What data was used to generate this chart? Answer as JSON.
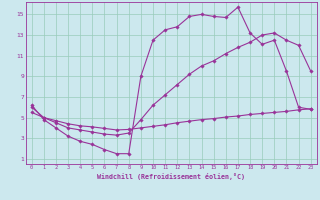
{
  "bg_color": "#cce8ee",
  "line_color": "#993399",
  "grid_color": "#99ccbb",
  "xlabel": "Windchill (Refroidissement éolien,°C)",
  "xlim": [
    -0.5,
    23.5
  ],
  "ylim": [
    0.5,
    16.2
  ],
  "xticks": [
    0,
    1,
    2,
    3,
    4,
    5,
    6,
    7,
    8,
    9,
    10,
    11,
    12,
    13,
    14,
    15,
    16,
    17,
    18,
    19,
    20,
    21,
    22,
    23
  ],
  "yticks": [
    1,
    3,
    5,
    7,
    9,
    11,
    13,
    15
  ],
  "line1_x": [
    0,
    1,
    2,
    3,
    4,
    5,
    6,
    7,
    8,
    9,
    10,
    11,
    12,
    13,
    14,
    15,
    16,
    17,
    18,
    19,
    20,
    21,
    22,
    23
  ],
  "line1_y": [
    6.2,
    4.8,
    4.0,
    3.2,
    2.7,
    2.4,
    1.9,
    1.5,
    1.5,
    9.0,
    12.5,
    13.5,
    13.8,
    14.8,
    15.0,
    14.8,
    14.7,
    15.7,
    13.2,
    12.1,
    12.5,
    9.5,
    6.0,
    5.8
  ],
  "line2_x": [
    0,
    1,
    2,
    3,
    4,
    5,
    6,
    7,
    8,
    9,
    10,
    11,
    12,
    13,
    14,
    15,
    16,
    17,
    18,
    19,
    20,
    21,
    22,
    23
  ],
  "line2_y": [
    6.0,
    5.0,
    4.5,
    4.0,
    3.8,
    3.6,
    3.4,
    3.3,
    3.5,
    4.8,
    6.2,
    7.2,
    8.2,
    9.2,
    10.0,
    10.5,
    11.2,
    11.8,
    12.3,
    13.0,
    13.2,
    12.5,
    12.0,
    9.5
  ],
  "line3_x": [
    0,
    1,
    2,
    3,
    4,
    5,
    6,
    7,
    8,
    9,
    10,
    11,
    12,
    13,
    14,
    15,
    16,
    17,
    18,
    19,
    20,
    21,
    22,
    23
  ],
  "line3_y": [
    5.5,
    5.0,
    4.7,
    4.4,
    4.2,
    4.1,
    3.95,
    3.8,
    3.85,
    4.0,
    4.15,
    4.3,
    4.5,
    4.65,
    4.8,
    4.9,
    5.05,
    5.15,
    5.3,
    5.4,
    5.5,
    5.6,
    5.75,
    5.85
  ]
}
